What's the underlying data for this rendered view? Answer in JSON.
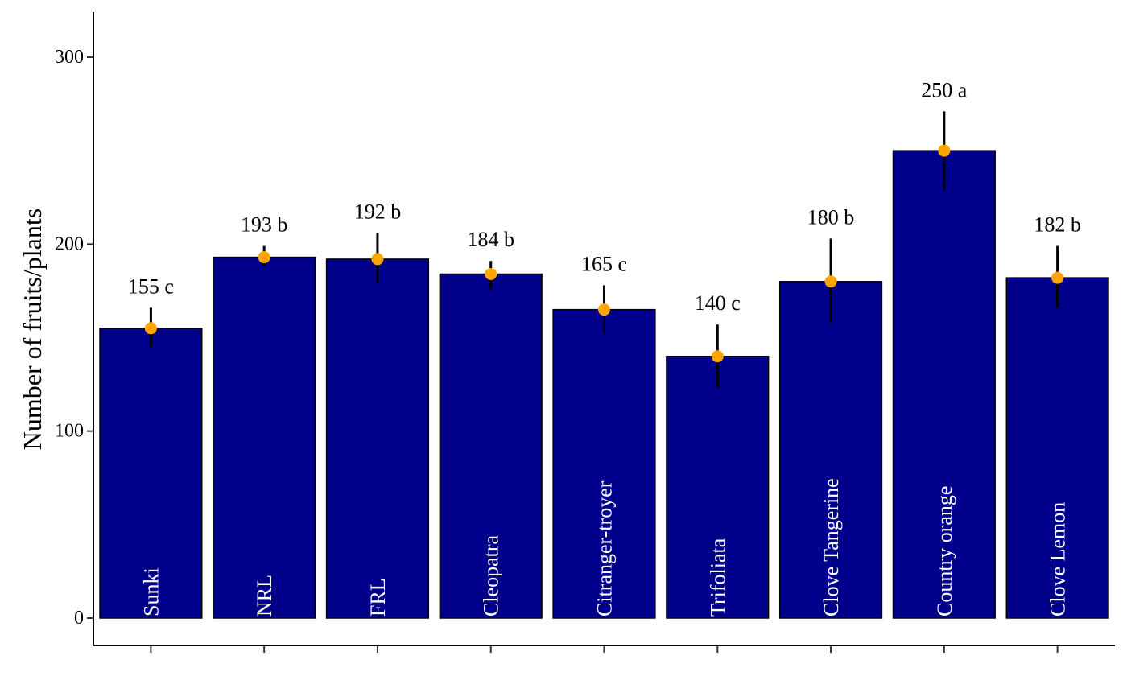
{
  "chart_data": {
    "type": "bar",
    "title": "",
    "xlabel": "",
    "ylabel": "Number of fruits/plants",
    "ylim": [
      -15,
      324
    ],
    "yticks": [
      0,
      100,
      200,
      300
    ],
    "grid": false,
    "categories": [
      "Sunki",
      "NRL",
      "FRL",
      "Cleopatra",
      "Citranger-troyer",
      "Trifoliata",
      "Clove Tangerine",
      "Country orange",
      "Clove Lemon"
    ],
    "values": [
      155,
      193,
      192,
      184,
      165,
      140,
      180,
      250,
      182
    ],
    "error_low": [
      145,
      188,
      179,
      176,
      152,
      123,
      158,
      229,
      166
    ],
    "error_high": [
      166,
      199,
      206,
      191,
      178,
      157,
      203,
      271,
      199
    ],
    "data_labels": [
      "155 c",
      "193 b",
      "192 b",
      "184 b",
      "165 c",
      "140 c",
      "180 b",
      "250 a",
      "182 b"
    ],
    "colors": {
      "bar_fill": "#00008B",
      "point": "#FFA500",
      "bar_text": "#FFFFFF"
    }
  }
}
